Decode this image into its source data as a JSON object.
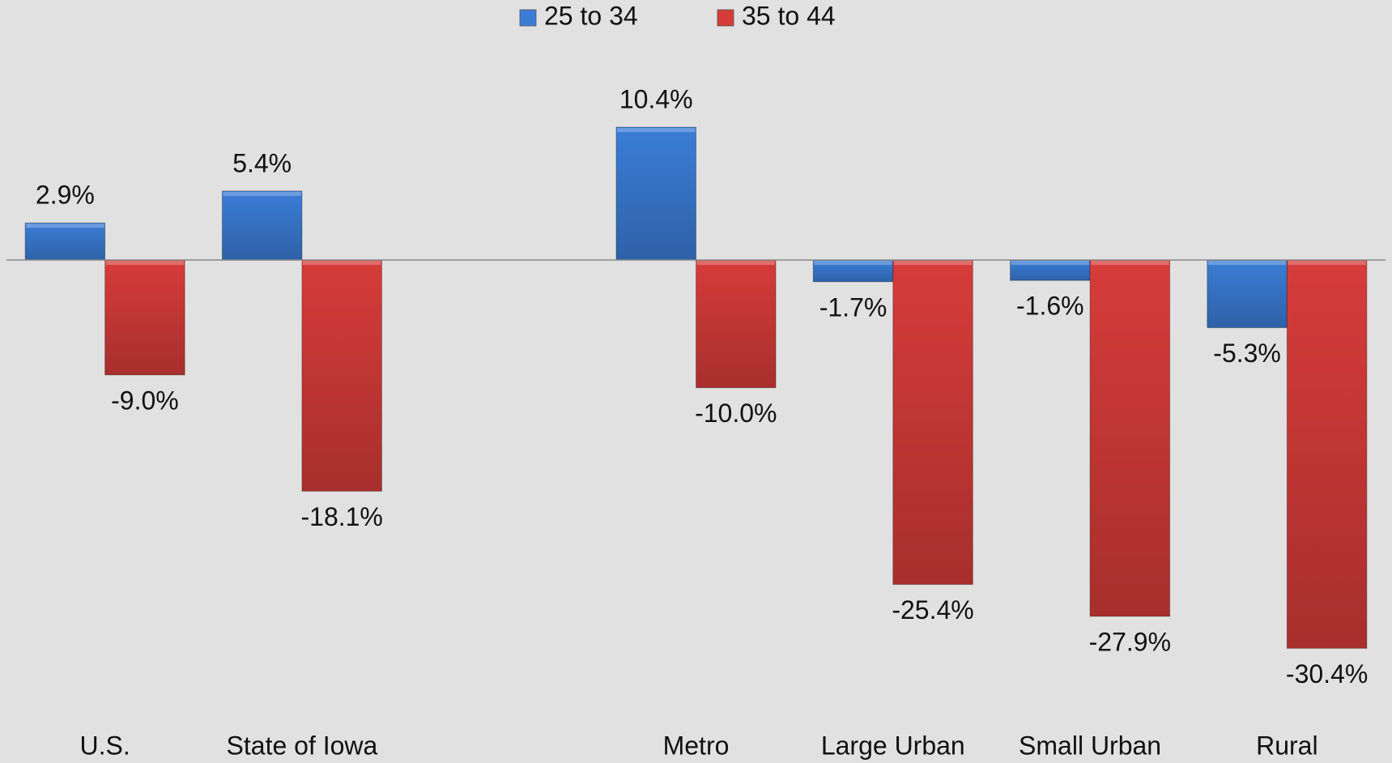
{
  "chart_data": {
    "type": "bar",
    "categories": [
      "U.S.",
      "State of Iowa",
      null,
      "Metro",
      "Large Urban",
      "Small Urban",
      "Rural"
    ],
    "series": [
      {
        "name": "25 to 34",
        "color": "#3b7dd6",
        "values": [
          2.9,
          5.4,
          null,
          10.4,
          -1.7,
          -1.6,
          -5.3
        ],
        "value_labels": [
          "2.9%",
          "5.4%",
          null,
          "10.4%",
          "-1.7%",
          "-1.6%",
          "-5.3%"
        ]
      },
      {
        "name": "35 to 44",
        "color": "#d63c3a",
        "values": [
          -9.0,
          -18.1,
          null,
          -10.0,
          -25.4,
          -27.9,
          -30.4
        ],
        "value_labels": [
          "-9.0%",
          "-18.1%",
          null,
          "-10.0%",
          "-25.4%",
          "-27.9%",
          "-30.4%"
        ]
      }
    ],
    "legend": "top"
  }
}
